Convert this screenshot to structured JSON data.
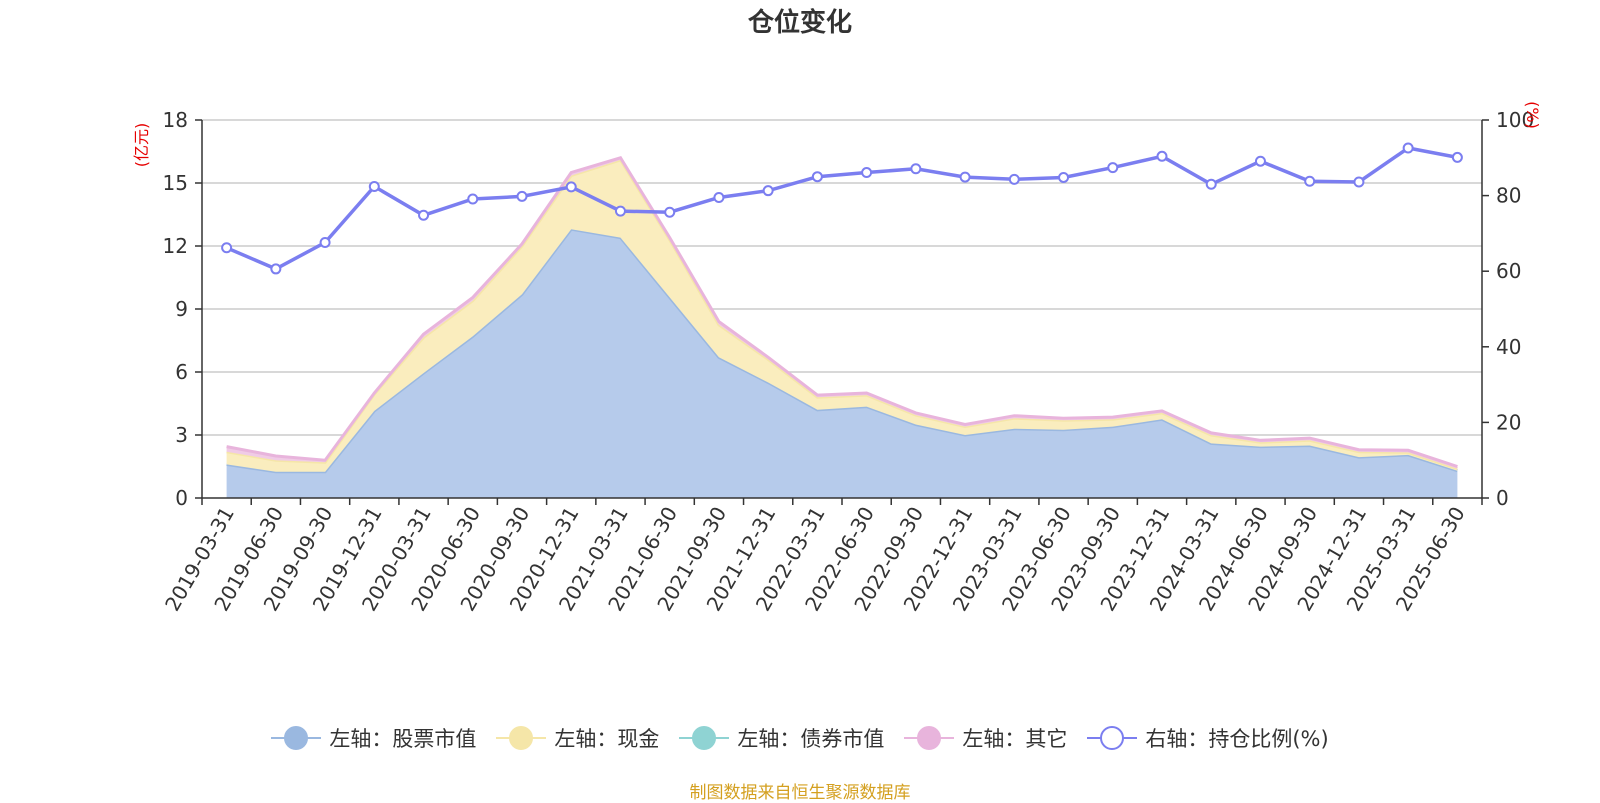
{
  "chart_data": {
    "type": "area",
    "title": "仓位变化",
    "left_axis_unit": "(亿元)",
    "right_axis_unit": "(%)",
    "categories": [
      "2019-03-31",
      "2019-06-30",
      "2019-09-30",
      "2019-12-31",
      "2020-03-31",
      "2020-06-30",
      "2020-09-30",
      "2020-12-31",
      "2021-03-31",
      "2021-06-30",
      "2021-09-30",
      "2021-12-31",
      "2022-03-31",
      "2022-06-30",
      "2022-09-30",
      "2022-12-31",
      "2023-03-31",
      "2023-06-30",
      "2023-09-30",
      "2023-12-31",
      "2024-03-31",
      "2024-06-30",
      "2024-09-30",
      "2024-12-31",
      "2025-03-31",
      "2025-06-30"
    ],
    "left_ylim": [
      0,
      18
    ],
    "left_yticks": [
      0,
      3,
      6,
      9,
      12,
      15,
      18
    ],
    "right_ylim": [
      0,
      100
    ],
    "right_yticks": [
      0,
      20,
      40,
      60,
      80,
      100
    ],
    "grid": true,
    "legend_position": "bottom",
    "series": [
      {
        "name": "左轴：股票市值",
        "axis": "left",
        "stack": true,
        "color": "#9ab8e0",
        "fill": "#b6cbeb",
        "values": [
          1.6,
          1.25,
          1.25,
          4.15,
          5.95,
          7.7,
          9.7,
          12.8,
          12.4,
          9.55,
          6.7,
          5.5,
          4.2,
          4.35,
          3.5,
          3.0,
          3.3,
          3.25,
          3.4,
          3.75,
          2.6,
          2.45,
          2.5,
          1.95,
          2.05,
          1.3
        ]
      },
      {
        "name": "左轴：现金",
        "axis": "left",
        "stack": true,
        "color": "#f5e6a8",
        "fill": "#faedbe",
        "values": [
          0.6,
          0.55,
          0.45,
          0.8,
          1.7,
          1.7,
          2.3,
          2.55,
          3.7,
          2.75,
          1.55,
          1.1,
          0.6,
          0.55,
          0.45,
          0.4,
          0.5,
          0.45,
          0.35,
          0.3,
          0.4,
          0.2,
          0.25,
          0.25,
          0.12,
          0.1
        ]
      },
      {
        "name": "左轴：债券市值",
        "axis": "left",
        "stack": true,
        "color": "#8fd3d3",
        "fill": "#a8dede",
        "values": [
          0,
          0,
          0,
          0,
          0,
          0,
          0,
          0,
          0,
          0,
          0,
          0,
          0,
          0,
          0,
          0,
          0,
          0,
          0,
          0,
          0,
          0,
          0,
          0,
          0,
          0
        ]
      },
      {
        "name": "左轴：其它",
        "axis": "left",
        "stack": true,
        "color": "#e8b4dc",
        "fill": "#f0cbe6",
        "values": [
          0.25,
          0.2,
          0.1,
          0.05,
          0.15,
          0.15,
          0.1,
          0.15,
          0.1,
          0.1,
          0.15,
          0.1,
          0.1,
          0.1,
          0.1,
          0.1,
          0.12,
          0.1,
          0.1,
          0.1,
          0.1,
          0.1,
          0.1,
          0.1,
          0.1,
          0.1
        ]
      },
      {
        "name": "右轴：持仓比例(%)",
        "axis": "right",
        "type": "line",
        "color": "#7b7ef0",
        "values": [
          66.2,
          60.6,
          67.6,
          82.4,
          74.8,
          79.1,
          79.8,
          82.3,
          75.9,
          75.6,
          79.5,
          81.3,
          85.0,
          86.1,
          87.1,
          84.9,
          84.3,
          84.8,
          87.4,
          90.4,
          83.0,
          89.1,
          83.8,
          83.6,
          92.6,
          90.1
        ]
      }
    ]
  },
  "source_note": "制图数据来自恒生聚源数据库"
}
